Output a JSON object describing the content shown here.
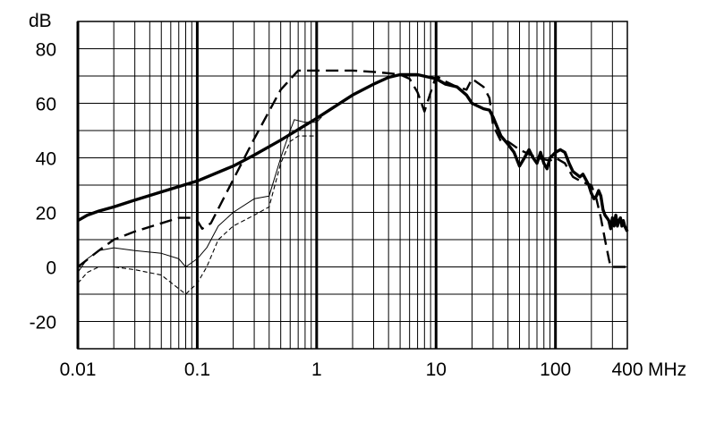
{
  "chart_data": {
    "type": "line",
    "title": "",
    "xlabel": "",
    "ylabel": "",
    "x_scale": "log",
    "xlim": [
      0.01,
      400
    ],
    "ylim": [
      -30,
      90
    ],
    "y_unit_label": "dB",
    "x_unit_label": "MHz",
    "grid": true,
    "legend": "none",
    "x_tick_labels": [
      {
        "v": 0.01,
        "label": "0.01"
      },
      {
        "v": 0.1,
        "label": "0.1"
      },
      {
        "v": 1,
        "label": "1"
      },
      {
        "v": 10,
        "label": "10"
      },
      {
        "v": 100,
        "label": "100"
      },
      {
        "v": 400,
        "label": "400"
      }
    ],
    "y_tick_labels": [
      {
        "v": 80,
        "label": "80"
      },
      {
        "v": 60,
        "label": "60"
      },
      {
        "v": 40,
        "label": "40"
      },
      {
        "v": 20,
        "label": "20"
      },
      {
        "v": 0,
        "label": "0"
      },
      {
        "v": -20,
        "label": "-20"
      }
    ],
    "series": [
      {
        "style": "thick-solid",
        "points": [
          [
            0.01,
            17
          ],
          [
            0.012,
            19
          ],
          [
            0.015,
            20.5
          ],
          [
            0.02,
            22
          ],
          [
            0.03,
            24.5
          ],
          [
            0.05,
            27.5
          ],
          [
            0.1,
            31.5
          ],
          [
            0.2,
            37
          ],
          [
            0.3,
            41
          ],
          [
            0.5,
            46.5
          ],
          [
            1,
            54.5
          ],
          [
            2,
            63
          ],
          [
            3,
            67
          ],
          [
            4,
            69.5
          ],
          [
            5,
            70.5
          ],
          [
            7,
            70.5
          ],
          [
            10,
            69
          ],
          [
            12,
            67
          ],
          [
            15,
            66
          ],
          [
            18,
            63
          ],
          [
            20,
            60
          ],
          [
            25,
            58
          ],
          [
            28,
            57.5
          ],
          [
            30,
            55
          ],
          [
            35,
            48
          ],
          [
            40,
            45
          ],
          [
            45,
            42
          ],
          [
            50,
            37
          ],
          [
            55,
            40
          ],
          [
            60,
            43
          ],
          [
            65,
            40
          ],
          [
            70,
            38
          ],
          [
            75,
            42
          ],
          [
            80,
            38
          ],
          [
            85,
            36
          ],
          [
            90,
            40
          ],
          [
            95,
            41
          ],
          [
            100,
            42
          ],
          [
            110,
            43
          ],
          [
            120,
            42
          ],
          [
            130,
            38
          ],
          [
            140,
            35
          ],
          [
            150,
            34
          ],
          [
            160,
            33
          ],
          [
            170,
            34
          ],
          [
            180,
            32
          ],
          [
            190,
            30
          ],
          [
            200,
            27
          ],
          [
            210,
            25
          ],
          [
            220,
            26
          ],
          [
            230,
            28
          ],
          [
            240,
            26
          ],
          [
            250,
            21
          ],
          [
            260,
            19
          ],
          [
            270,
            18
          ],
          [
            280,
            17
          ],
          [
            290,
            14
          ],
          [
            300,
            18
          ],
          [
            310,
            15
          ],
          [
            320,
            19
          ],
          [
            330,
            15
          ],
          [
            340,
            17
          ],
          [
            350,
            18
          ],
          [
            360,
            15
          ],
          [
            370,
            17
          ],
          [
            380,
            15
          ],
          [
            400,
            13
          ]
        ]
      },
      {
        "style": "long-dash",
        "points": [
          [
            0.01,
            0
          ],
          [
            0.015,
            6
          ],
          [
            0.02,
            10
          ],
          [
            0.03,
            13
          ],
          [
            0.05,
            16
          ],
          [
            0.07,
            18
          ],
          [
            0.09,
            18
          ],
          [
            0.1,
            17
          ],
          [
            0.11,
            14
          ],
          [
            0.13,
            16
          ],
          [
            0.2,
            32
          ],
          [
            0.3,
            47
          ],
          [
            0.5,
            65
          ],
          [
            0.7,
            72
          ],
          [
            1,
            72
          ],
          [
            2,
            72
          ],
          [
            3,
            71.5
          ],
          [
            4,
            71
          ],
          [
            5,
            70.5
          ],
          [
            6,
            69
          ],
          [
            7,
            64
          ],
          [
            8,
            57
          ],
          [
            9,
            64
          ],
          [
            10,
            70
          ],
          [
            12,
            68
          ],
          [
            15,
            66
          ],
          [
            18,
            65
          ],
          [
            20,
            69
          ],
          [
            25,
            66
          ],
          [
            28,
            62
          ],
          [
            30,
            52
          ],
          [
            35,
            46
          ],
          [
            40,
            46
          ],
          [
            50,
            43
          ],
          [
            70,
            40
          ],
          [
            90,
            39
          ],
          [
            100,
            40
          ],
          [
            120,
            38
          ],
          [
            140,
            33
          ],
          [
            170,
            31
          ],
          [
            200,
            30
          ],
          [
            220,
            25
          ],
          [
            240,
            18
          ],
          [
            260,
            10
          ],
          [
            280,
            3
          ],
          [
            290,
            0
          ],
          [
            400,
            0
          ]
        ]
      },
      {
        "style": "thin-solid",
        "points": [
          [
            0.01,
            -2
          ],
          [
            0.012,
            3
          ],
          [
            0.015,
            6
          ],
          [
            0.02,
            7
          ],
          [
            0.03,
            6
          ],
          [
            0.05,
            5
          ],
          [
            0.07,
            3
          ],
          [
            0.08,
            0
          ],
          [
            0.1,
            3
          ],
          [
            0.12,
            7
          ],
          [
            0.15,
            15
          ],
          [
            0.2,
            20
          ],
          [
            0.3,
            25
          ],
          [
            0.4,
            26
          ],
          [
            0.5,
            40
          ],
          [
            0.6,
            50
          ],
          [
            0.65,
            54
          ],
          [
            0.8,
            53
          ],
          [
            1,
            53
          ],
          [
            1.1,
            55
          ]
        ]
      },
      {
        "style": "short-dash",
        "points": [
          [
            0.01,
            -6
          ],
          [
            0.012,
            -2
          ],
          [
            0.015,
            0
          ],
          [
            0.02,
            0
          ],
          [
            0.03,
            -1
          ],
          [
            0.05,
            -3
          ],
          [
            0.07,
            -8
          ],
          [
            0.08,
            -10
          ],
          [
            0.1,
            -6
          ],
          [
            0.12,
            0
          ],
          [
            0.15,
            10
          ],
          [
            0.2,
            15
          ],
          [
            0.3,
            19
          ],
          [
            0.4,
            22
          ],
          [
            0.5,
            38
          ],
          [
            0.6,
            46
          ],
          [
            0.7,
            48
          ],
          [
            1,
            48
          ]
        ]
      }
    ]
  }
}
